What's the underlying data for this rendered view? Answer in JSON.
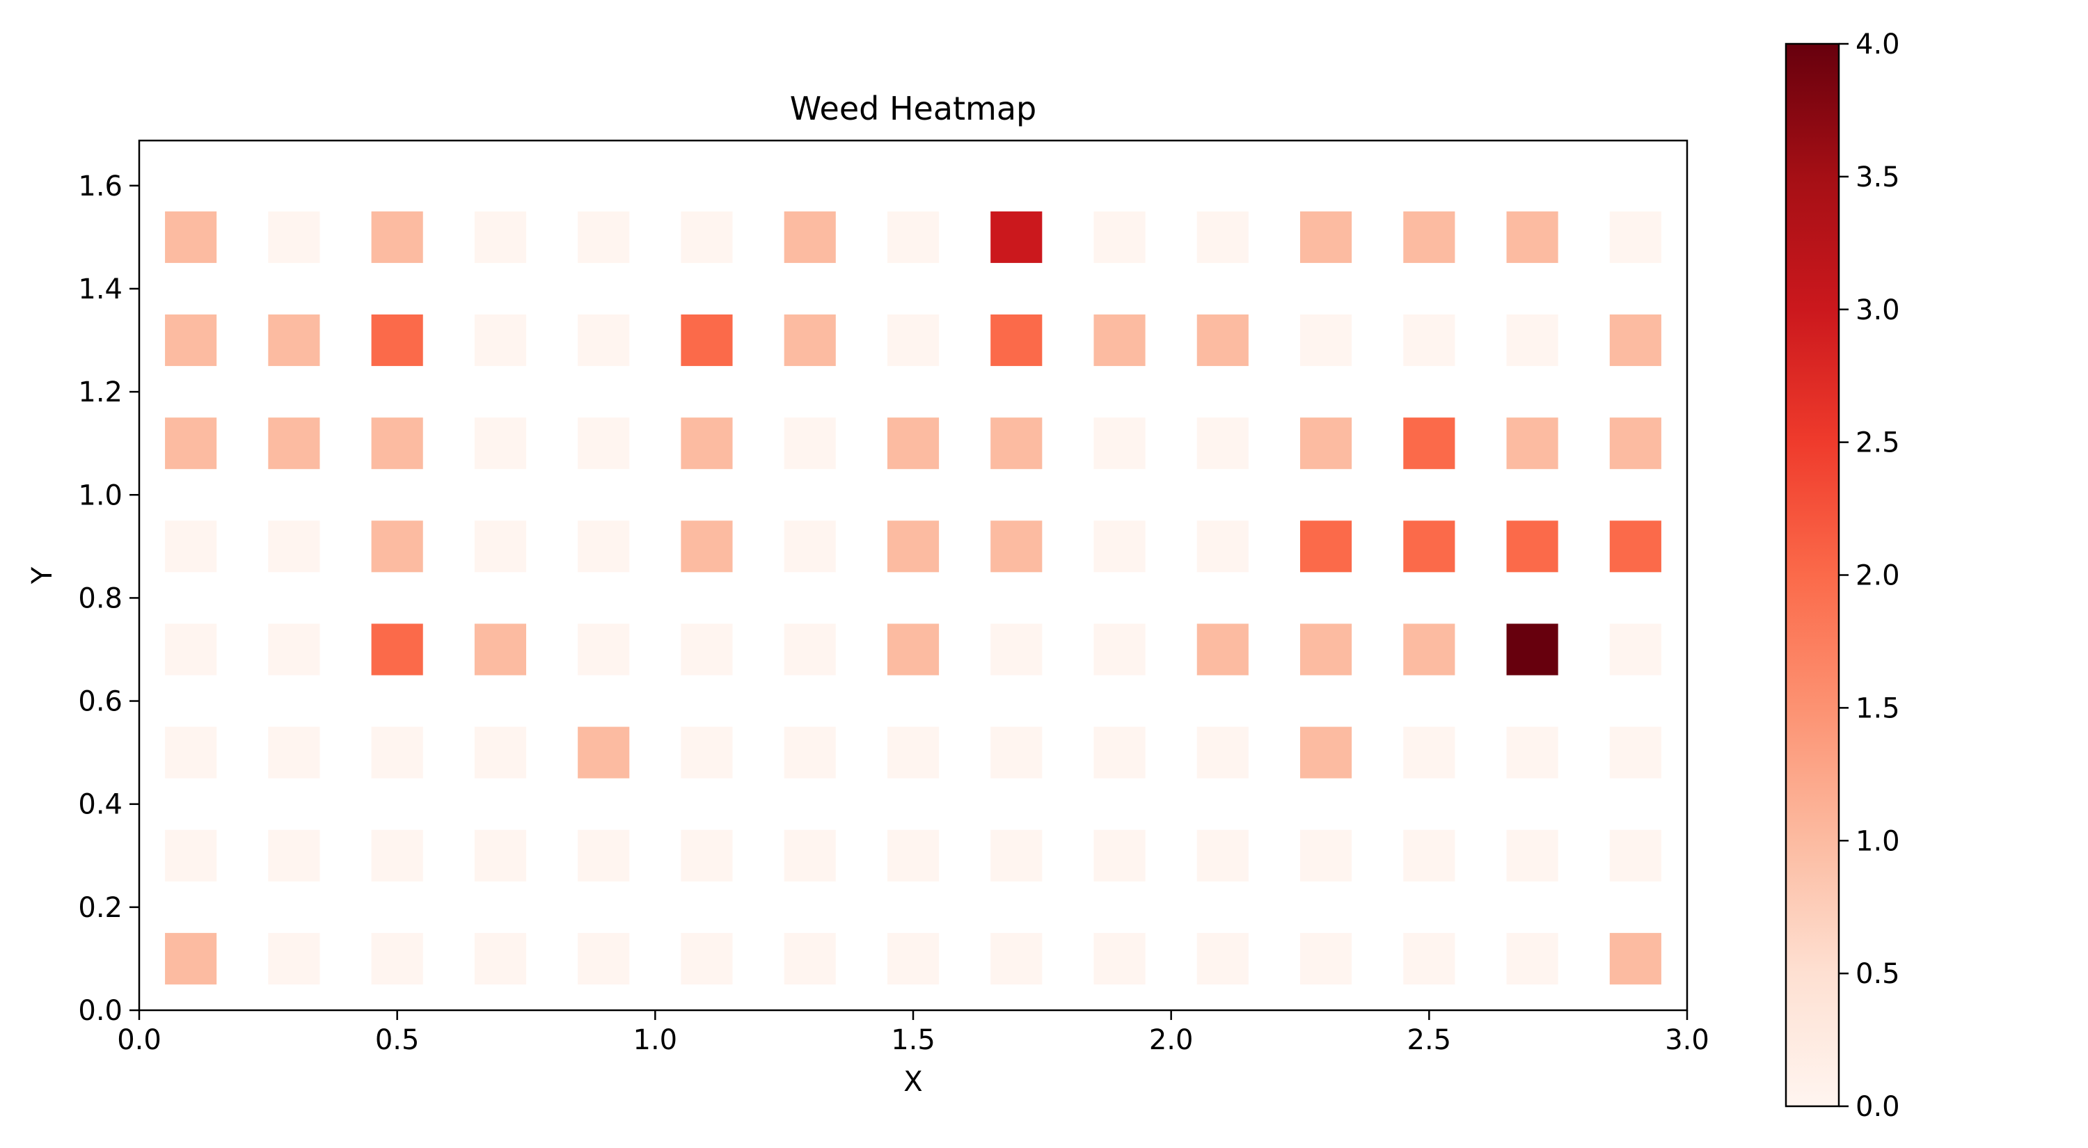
{
  "chart_data": {
    "type": "heatmap",
    "title": "Weed Heatmap",
    "xlabel": "X",
    "ylabel": "Y",
    "xlim": [
      0.0,
      3.0
    ],
    "ylim": [
      0.0,
      1.6875
    ],
    "xticks": [
      0.0,
      0.5,
      1.0,
      1.5,
      2.0,
      2.5,
      3.0
    ],
    "xtick_labels": [
      "0.0",
      "0.5",
      "1.0",
      "1.5",
      "2.0",
      "2.5",
      "3.0"
    ],
    "yticks": [
      0.0,
      0.2,
      0.4,
      0.6,
      0.8,
      1.0,
      1.2,
      1.4,
      1.6
    ],
    "ytick_labels": [
      "0.0",
      "0.2",
      "0.4",
      "0.6",
      "0.8",
      "1.0",
      "1.2",
      "1.4",
      "1.6"
    ],
    "grid": false,
    "cell_size": 0.1,
    "x_centers": [
      0.1,
      0.3,
      0.5,
      0.7,
      0.9,
      1.1,
      1.3,
      1.5,
      1.7,
      1.9,
      2.1,
      2.3,
      2.5,
      2.7,
      2.9
    ],
    "y_centers": [
      0.1,
      0.3,
      0.5,
      0.7,
      0.9,
      1.1,
      1.3,
      1.5
    ],
    "values": [
      [
        1,
        0,
        0,
        0,
        0,
        0,
        0,
        0,
        0,
        0,
        0,
        0,
        0,
        0,
        1
      ],
      [
        0,
        0,
        0,
        0,
        0,
        0,
        0,
        0,
        0,
        0,
        0,
        0,
        0,
        0,
        0
      ],
      [
        0,
        0,
        0,
        0,
        1,
        0,
        0,
        0,
        0,
        0,
        0,
        1,
        0,
        0,
        0
      ],
      [
        0,
        0,
        2,
        1,
        0,
        0,
        0,
        1,
        0,
        0,
        1,
        1,
        1,
        4,
        0
      ],
      [
        0,
        0,
        1,
        0,
        0,
        1,
        0,
        1,
        1,
        0,
        0,
        2,
        2,
        2,
        2
      ],
      [
        1,
        1,
        1,
        0,
        0,
        1,
        0,
        1,
        1,
        0,
        0,
        1,
        2,
        1,
        1
      ],
      [
        1,
        1,
        2,
        0,
        0,
        2,
        1,
        0,
        2,
        1,
        1,
        0,
        0,
        0,
        1
      ],
      [
        1,
        0,
        1,
        0,
        0,
        0,
        1,
        0,
        3,
        0,
        0,
        1,
        1,
        1,
        0
      ]
    ],
    "colormap": "Reds",
    "colorbar": {
      "vmin": 0.0,
      "vmax": 4.0,
      "ticks": [
        0.0,
        0.5,
        1.0,
        1.5,
        2.0,
        2.5,
        3.0,
        3.5,
        4.0
      ],
      "tick_labels": [
        "0.0",
        "0.5",
        "1.0",
        "1.5",
        "2.0",
        "2.5",
        "3.0",
        "3.5",
        "4.0"
      ],
      "stops": [
        "#fff5f0",
        "#fee0d2",
        "#fcbba1",
        "#fc9272",
        "#fb6a4a",
        "#ef3b2c",
        "#cb181d",
        "#a50f15",
        "#67000d"
      ]
    }
  }
}
